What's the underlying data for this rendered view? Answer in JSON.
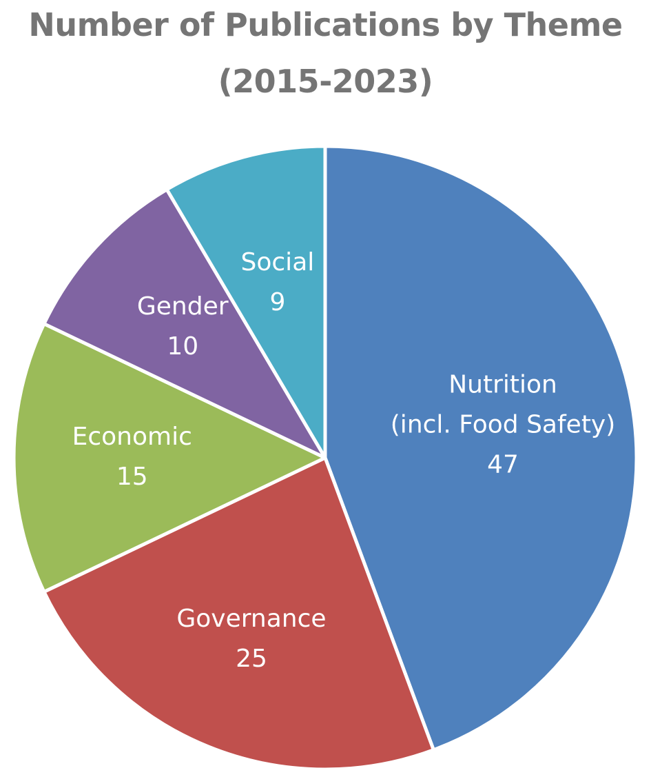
{
  "chart_data": {
    "type": "pie",
    "title": "Number of Publications by Theme",
    "subtitle": "(2015-2023)",
    "categories": [
      "Nutrition (incl. Food Safety)",
      "Governance",
      "Economic",
      "Gender",
      "Social"
    ],
    "values": [
      47,
      25,
      15,
      10,
      9
    ],
    "slices": [
      {
        "label": "Nutrition",
        "label_line2": "(incl. Food Safety)",
        "value": 47,
        "color": "#4f81bd"
      },
      {
        "label": "Governance",
        "label_line2": "",
        "value": 25,
        "color": "#c0504d"
      },
      {
        "label": "Economic",
        "label_line2": "",
        "value": 15,
        "color": "#9bbb59"
      },
      {
        "label": "Gender",
        "label_line2": "",
        "value": 10,
        "color": "#8064a2"
      },
      {
        "label": "Social",
        "label_line2": "",
        "value": 9,
        "color": "#4bacc6"
      }
    ],
    "start_direction": "12 o'clock",
    "direction": "clockwise",
    "legend": "none",
    "data_labels": "inside slices (category name and value)"
  },
  "colors": {
    "title": "#757575",
    "label_text": "#ffffff",
    "slice_border": "#ffffff",
    "background": "#ffffff"
  }
}
